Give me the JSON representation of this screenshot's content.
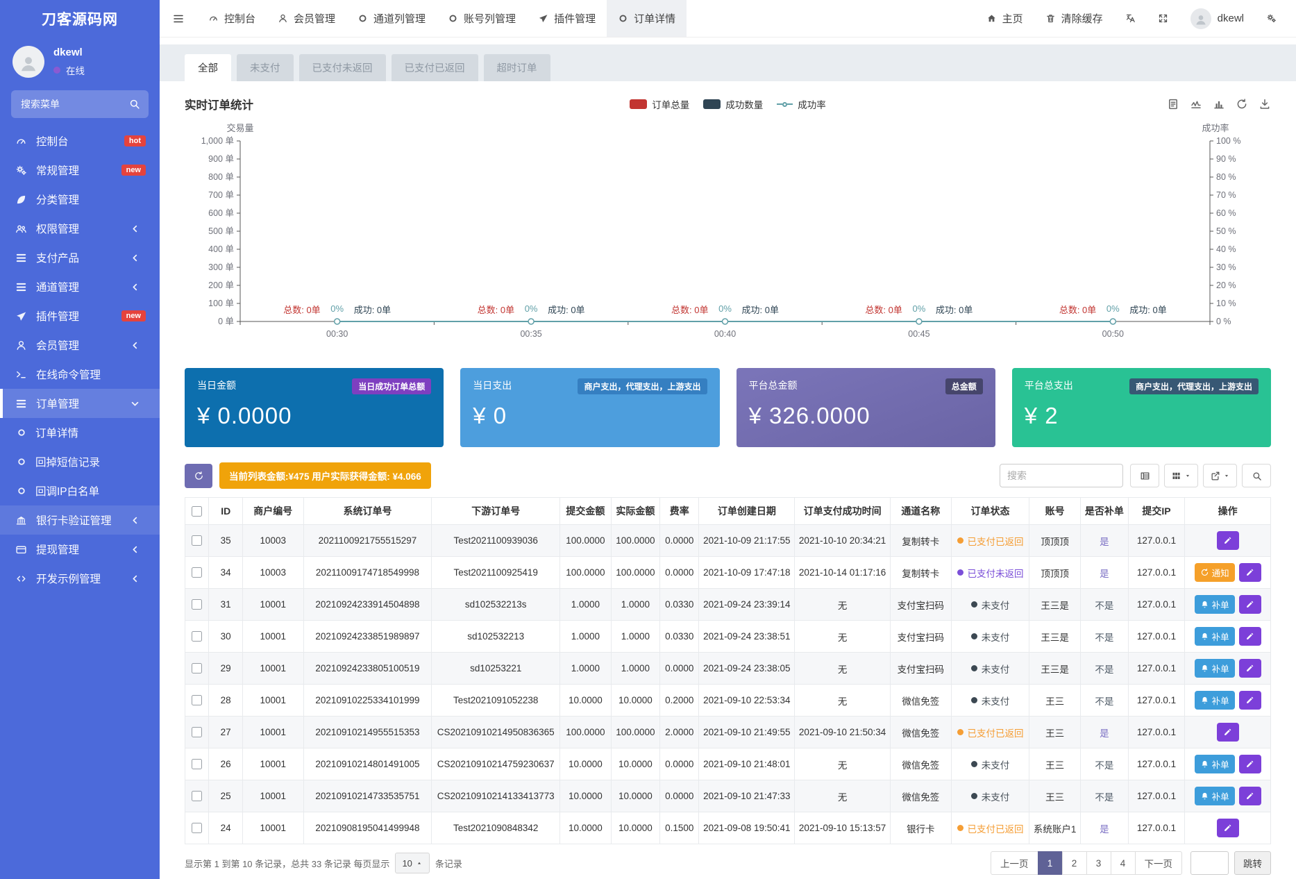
{
  "app": {
    "logo": "刀客源码网"
  },
  "user": {
    "name": "dkewl",
    "status": "在线"
  },
  "sidebar": {
    "search_placeholder": "搜索菜单",
    "items": [
      {
        "icon": "gauge",
        "label": "控制台",
        "badge": "hot"
      },
      {
        "icon": "gears",
        "label": "常规管理",
        "badge": "new"
      },
      {
        "icon": "leaf",
        "label": "分类管理"
      },
      {
        "icon": "users",
        "label": "权限管理",
        "arrow": "left"
      },
      {
        "icon": "list",
        "label": "支付产品",
        "arrow": "left"
      },
      {
        "icon": "list",
        "label": "通道管理",
        "arrow": "left"
      },
      {
        "icon": "plane",
        "label": "插件管理",
        "badge": "new"
      },
      {
        "icon": "user",
        "label": "会员管理",
        "arrow": "left"
      },
      {
        "icon": "terminal",
        "label": "在线命令管理"
      },
      {
        "icon": "list",
        "label": "订单管理",
        "arrow": "down",
        "active": true
      },
      {
        "icon": "circle",
        "label": "订单详情",
        "sub": true
      },
      {
        "icon": "circle",
        "label": "回掉短信记录",
        "sub": true
      },
      {
        "icon": "circle",
        "label": "回调IP白名单",
        "sub": true
      },
      {
        "icon": "bank",
        "label": "银行卡验证管理",
        "arrow": "left",
        "hover": true
      },
      {
        "icon": "wallet",
        "label": "提现管理",
        "arrow": "left"
      },
      {
        "icon": "code",
        "label": "开发示例管理",
        "arrow": "left"
      }
    ]
  },
  "navbar": {
    "items": [
      {
        "icon": "gauge",
        "label": "控制台"
      },
      {
        "icon": "user",
        "label": "会员管理"
      },
      {
        "icon": "circle",
        "label": "通道列管理"
      },
      {
        "icon": "circle",
        "label": "账号列管理"
      },
      {
        "icon": "plane",
        "label": "插件管理"
      },
      {
        "icon": "circle",
        "label": "订单详情",
        "active": true
      }
    ],
    "right": [
      {
        "icon": "home",
        "label": "主页"
      },
      {
        "icon": "trash",
        "label": "清除缓存"
      },
      {
        "icon": "translate",
        "label": ""
      },
      {
        "icon": "expand",
        "label": ""
      }
    ],
    "username": "dkewl"
  },
  "tabs": {
    "items": [
      "全部",
      "未支付",
      "已支付未返回",
      "已支付已返回",
      "超时订单"
    ],
    "active": 0
  },
  "chart_data": {
    "type": "line",
    "title": "实时订单统计",
    "x": [
      "00:30",
      "00:35",
      "00:40",
      "00:45",
      "00:50"
    ],
    "series": [
      {
        "name": "订单总量",
        "type": "bar",
        "color": "#c23531",
        "values": [
          0,
          0,
          0,
          0,
          0
        ]
      },
      {
        "name": "成功数量",
        "type": "bar",
        "color": "#2f4554",
        "values": [
          0,
          0,
          0,
          0,
          0
        ]
      },
      {
        "name": "成功率",
        "type": "line",
        "color": "#61a0a8",
        "values": [
          0,
          0,
          0,
          0,
          0
        ]
      }
    ],
    "y_left": {
      "name": "交易量",
      "min": 0,
      "max": 1000,
      "step": 100,
      "unit": "单"
    },
    "y_right": {
      "name": "成功率",
      "min": 0,
      "max": 100,
      "step": 10,
      "unit": "%"
    },
    "point_labels": [
      {
        "total": "总数: 0单",
        "rate": "0%",
        "success": "成功: 0单"
      },
      {
        "total": "总数: 0单",
        "rate": "0%",
        "success": "成功: 0单"
      },
      {
        "total": "总数: 0单",
        "rate": "0%",
        "success": "成功: 0单"
      },
      {
        "total": "总数: 0单",
        "rate": "0%",
        "success": "成功: 0单"
      },
      {
        "total": "总数: 0单",
        "rate": "0%",
        "success": "成功: 0单"
      }
    ],
    "legend_position": "top",
    "grid": false
  },
  "chart_toolbox": [
    "doc",
    "chartline",
    "chartbar",
    "refresh",
    "download"
  ],
  "cards": [
    {
      "label": "当日金额",
      "badge": "当日成功订单总额",
      "value": "¥ 0.0000",
      "bg": "#0d6fae",
      "badge_bg": "#7e3fc0"
    },
    {
      "label": "当日支出",
      "badge": "商户支出，代理支出，上游支出",
      "value": "¥ 0",
      "bg": "#4d9edd",
      "badge_bg": "rgba(10,70,140,0.35)"
    },
    {
      "label": "平台总金额",
      "badge": "总金额",
      "value": "¥ 326.0000",
      "bg": "linear-gradient(160deg,#7b75b9,#6a64a5)",
      "badge_bg": "rgba(35,38,55,0.55)"
    },
    {
      "label": "平台总支出",
      "badge": "商户支出，代理支出，上游支出",
      "value": "¥ 2",
      "bg": "#29c294",
      "badge_bg": "rgba(60,52,105,0.75)"
    }
  ],
  "toolbar": {
    "summary": "当前列表金额:¥475 用户实际获得金额: ¥4.066",
    "search_placeholder": "搜索"
  },
  "table": {
    "headers": [
      "ID",
      "商户编号",
      "系统订单号",
      "下游订单号",
      "提交金额",
      "实际金额",
      "费率",
      "订单创建日期",
      "订单支付成功时间",
      "通道名称",
      "订单状态",
      "账号",
      "是否补单",
      "提交IP",
      "操作"
    ],
    "action_labels": {
      "notify": "通知",
      "supplement": "补单"
    },
    "supplement_yes": "是",
    "rows": [
      {
        "id": "35",
        "merchant": "10003",
        "sys_no": "2021100921755515297",
        "down_no": "Test2021100939036",
        "amount": "100.0000",
        "actual": "100.0000",
        "rate": "0.0000",
        "created": "2021-10-09 21:17:55",
        "paid_at": "2021-10-10 20:34:21",
        "channel": "复制转卡",
        "status": "已支付已返回",
        "status_key": "paid_returned",
        "account": "顶顶顶",
        "supplement": "是",
        "ip": "127.0.0.1",
        "actions": [
          "edit"
        ]
      },
      {
        "id": "34",
        "merchant": "10003",
        "sys_no": "20211009174718549998",
        "down_no": "Test2021100925419",
        "amount": "100.0000",
        "actual": "100.0000",
        "rate": "0.0000",
        "created": "2021-10-09 17:47:18",
        "paid_at": "2021-10-14 01:17:16",
        "channel": "复制转卡",
        "status": "已支付未返回",
        "status_key": "paid_unreturned",
        "account": "顶顶顶",
        "supplement": "是",
        "ip": "127.0.0.1",
        "actions": [
          "notify",
          "edit"
        ]
      },
      {
        "id": "31",
        "merchant": "10001",
        "sys_no": "20210924233914504898",
        "down_no": "sd102532213s",
        "amount": "1.0000",
        "actual": "1.0000",
        "rate": "0.0330",
        "created": "2021-09-24 23:39:14",
        "paid_at": "无",
        "channel": "支付宝扫码",
        "status": "未支付",
        "status_key": "unpaid",
        "account": "王三是",
        "supplement": "不是",
        "ip": "127.0.0.1",
        "actions": [
          "supplement",
          "edit"
        ]
      },
      {
        "id": "30",
        "merchant": "10001",
        "sys_no": "20210924233851989897",
        "down_no": "sd102532213",
        "amount": "1.0000",
        "actual": "1.0000",
        "rate": "0.0330",
        "created": "2021-09-24 23:38:51",
        "paid_at": "无",
        "channel": "支付宝扫码",
        "status": "未支付",
        "status_key": "unpaid",
        "account": "王三是",
        "supplement": "不是",
        "ip": "127.0.0.1",
        "actions": [
          "supplement",
          "edit"
        ]
      },
      {
        "id": "29",
        "merchant": "10001",
        "sys_no": "20210924233805100519",
        "down_no": "sd10253221",
        "amount": "1.0000",
        "actual": "1.0000",
        "rate": "0.0000",
        "created": "2021-09-24 23:38:05",
        "paid_at": "无",
        "channel": "支付宝扫码",
        "status": "未支付",
        "status_key": "unpaid",
        "account": "王三是",
        "supplement": "不是",
        "ip": "127.0.0.1",
        "actions": [
          "supplement",
          "edit"
        ]
      },
      {
        "id": "28",
        "merchant": "10001",
        "sys_no": "20210910225334101999",
        "down_no": "Test2021091052238",
        "amount": "10.0000",
        "actual": "10.0000",
        "rate": "0.2000",
        "created": "2021-09-10 22:53:34",
        "paid_at": "无",
        "channel": "微信免签",
        "status": "未支付",
        "status_key": "unpaid",
        "account": "王三",
        "supplement": "不是",
        "ip": "127.0.0.1",
        "actions": [
          "supplement",
          "edit"
        ]
      },
      {
        "id": "27",
        "merchant": "10001",
        "sys_no": "20210910214955515353",
        "down_no": "CS20210910214950836365",
        "amount": "100.0000",
        "actual": "100.0000",
        "rate": "2.0000",
        "created": "2021-09-10 21:49:55",
        "paid_at": "2021-09-10 21:50:34",
        "channel": "微信免签",
        "status": "已支付已返回",
        "status_key": "paid_returned",
        "account": "王三",
        "supplement": "是",
        "ip": "127.0.0.1",
        "actions": [
          "edit"
        ]
      },
      {
        "id": "26",
        "merchant": "10001",
        "sys_no": "20210910214801491005",
        "down_no": "CS20210910214759230637",
        "amount": "10.0000",
        "actual": "10.0000",
        "rate": "0.0000",
        "created": "2021-09-10 21:48:01",
        "paid_at": "无",
        "channel": "微信免签",
        "status": "未支付",
        "status_key": "unpaid",
        "account": "王三",
        "supplement": "不是",
        "ip": "127.0.0.1",
        "actions": [
          "supplement",
          "edit"
        ]
      },
      {
        "id": "25",
        "merchant": "10001",
        "sys_no": "20210910214733535751",
        "down_no": "CS20210910214133413773",
        "amount": "10.0000",
        "actual": "10.0000",
        "rate": "0.0000",
        "created": "2021-09-10 21:47:33",
        "paid_at": "无",
        "channel": "微信免签",
        "status": "未支付",
        "status_key": "unpaid",
        "account": "王三",
        "supplement": "不是",
        "ip": "127.0.0.1",
        "actions": [
          "supplement",
          "edit"
        ]
      },
      {
        "id": "24",
        "merchant": "10001",
        "sys_no": "20210908195041499948",
        "down_no": "Test2021090848342",
        "amount": "10.0000",
        "actual": "10.0000",
        "rate": "0.1500",
        "created": "2021-09-08 19:50:41",
        "paid_at": "2021-09-10 15:13:57",
        "channel": "银行卡",
        "status": "已支付已返回",
        "status_key": "paid_returned",
        "account": "系统账户1",
        "supplement": "是",
        "ip": "127.0.0.1",
        "actions": [
          "edit"
        ]
      }
    ]
  },
  "pagination": {
    "info_prefix": "显示第 1 到第 10 条记录，总共 33 条记录 每页显示",
    "page_size": "10",
    "info_suffix": "条记录",
    "prev": "上一页",
    "pages": [
      "1",
      "2",
      "3",
      "4"
    ],
    "active_page": "1",
    "next": "下一页",
    "jump": "跳转"
  },
  "colors": {
    "sidebar": "#4c6ada",
    "badge_red": "#e5433d",
    "orange_badge": "#f0a30a",
    "purple_button": "#7c3fd9",
    "blue_button": "#3d9ddb",
    "notify_button": "#f5a02a",
    "status_paid_returned": "#f59e35",
    "status_paid_unreturned": "#7b4fd8",
    "status_unpaid": "#49525a",
    "pagination_active": "#5f6296",
    "online_dot": "#8a5ad2"
  }
}
